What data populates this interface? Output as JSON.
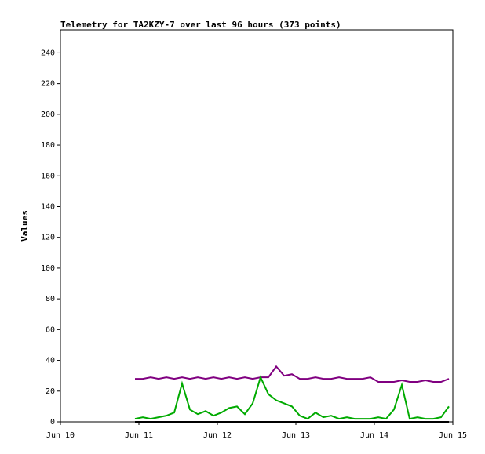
{
  "chart_data": {
    "type": "line",
    "title": "Telemetry for TA2KZY-7 over last 96 hours (373 points)",
    "y_label": "Values",
    "x": [
      10.95,
      11.05,
      11.15,
      11.25,
      11.35,
      11.45,
      11.55,
      11.65,
      11.75,
      11.85,
      11.95,
      12.05,
      12.15,
      12.25,
      12.35,
      12.45,
      12.55,
      12.65,
      12.75,
      12.85,
      12.95,
      13.05,
      13.15,
      13.25,
      13.35,
      13.45,
      13.55,
      13.65,
      13.75,
      13.85,
      13.95,
      14.05,
      14.15,
      14.25,
      14.35,
      14.45,
      14.55,
      14.65,
      14.75,
      14.85,
      14.95
    ],
    "series": [
      {
        "color": "#800080",
        "values": [
          28,
          28,
          29,
          28,
          29,
          28,
          29,
          28,
          29,
          28,
          29,
          28,
          29,
          28,
          29,
          28,
          29,
          29,
          36,
          30,
          31,
          28,
          28,
          29,
          28,
          28,
          29,
          28,
          28,
          28,
          29,
          26,
          26,
          26,
          27,
          26,
          26,
          27,
          26,
          26,
          28
        ]
      },
      {
        "color": "#00aa00",
        "values": [
          2,
          3,
          2,
          3,
          4,
          6,
          25,
          8,
          5,
          7,
          4,
          6,
          9,
          10,
          5,
          12,
          29,
          18,
          14,
          12,
          10,
          4,
          2,
          6,
          3,
          4,
          2,
          3,
          2,
          2,
          2,
          3,
          2,
          8,
          24,
          2,
          3,
          2,
          2,
          3,
          10
        ]
      },
      {
        "color": "#000000",
        "values": [
          0,
          0,
          0,
          0,
          0,
          0,
          0,
          0,
          0,
          0,
          0,
          0,
          0,
          0,
          0,
          0,
          0,
          0,
          0,
          0,
          0,
          0,
          0,
          0,
          0,
          0,
          0,
          0,
          0,
          0,
          0,
          0,
          0,
          0,
          0,
          0,
          0,
          0,
          0,
          0,
          0
        ]
      }
    ],
    "xlim": [
      10,
      15
    ],
    "xticks": [
      {
        "value": 10,
        "label": "Jun 10"
      },
      {
        "value": 11,
        "label": "Jun 11"
      },
      {
        "value": 12,
        "label": "Jun 12"
      },
      {
        "value": 13,
        "label": "Jun 13"
      },
      {
        "value": 14,
        "label": "Jun 14"
      },
      {
        "value": 15,
        "label": "Jun 15"
      }
    ],
    "ylim": [
      0,
      255
    ],
    "yticks": [
      0,
      20,
      40,
      60,
      80,
      100,
      120,
      140,
      160,
      180,
      200,
      220,
      240
    ]
  }
}
